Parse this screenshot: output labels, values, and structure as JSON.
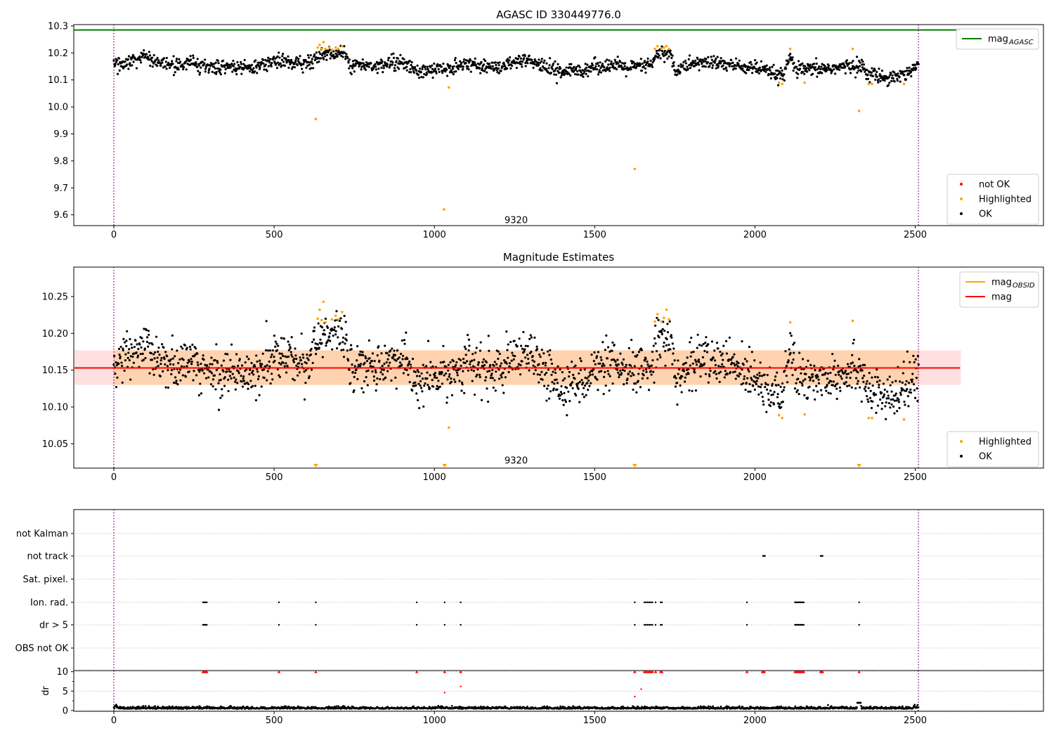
{
  "colors": {
    "ok": "#000000",
    "highlighted": "#ffa500",
    "not_ok": "#ff0000",
    "mag_agasc": "#008000",
    "mag": "#ff0000",
    "mag_obsid": "#ffa500",
    "obsid_vline": "#800080",
    "band": "#ff9999"
  },
  "chart_data": [
    {
      "type": "scatter",
      "title": "AGASC ID 330449776.0",
      "xlim": [
        -125,
        2900
      ],
      "ylim": [
        9.56,
        10.305
      ],
      "xticks": [
        0,
        500,
        1000,
        1500,
        2000,
        2500
      ],
      "yticks": [
        9.6,
        9.7,
        9.8,
        9.9,
        10.0,
        10.1,
        10.2,
        10.3
      ],
      "ytick_labels": [
        "9.6",
        "9.7",
        "9.8",
        "9.9",
        "10.0",
        "10.1",
        "10.2",
        "10.3"
      ],
      "obsid_lines": [
        0,
        2510
      ],
      "obsid_label": {
        "text": "9320",
        "x": 1255,
        "y": 9.58
      },
      "mag_agasc": 10.285,
      "legend_top": [
        {
          "label": "mag",
          "sub": "AGASC",
          "kind": "line",
          "color": "#008000"
        }
      ],
      "legend_bottom": [
        {
          "label": "not OK",
          "kind": "dot",
          "color": "#ff0000"
        },
        {
          "label": "Highlighted",
          "kind": "dot",
          "color": "#ffa500"
        },
        {
          "label": "OK",
          "kind": "dot",
          "color": "#000000"
        }
      ],
      "highlighted_points": [
        [
          630,
          9.955
        ],
        [
          636,
          10.22
        ],
        [
          642,
          10.23
        ],
        [
          648,
          10.215
        ],
        [
          654,
          10.24
        ],
        [
          660,
          10.215
        ],
        [
          672,
          10.22
        ],
        [
          680,
          10.21
        ],
        [
          692,
          10.22
        ],
        [
          700,
          10.215
        ],
        [
          712,
          10.225
        ],
        [
          1030,
          9.62
        ],
        [
          1045,
          10.072
        ],
        [
          1625,
          9.77
        ],
        [
          1688,
          10.215
        ],
        [
          1696,
          10.225
        ],
        [
          1708,
          10.215
        ],
        [
          1716,
          10.22
        ],
        [
          1724,
          10.225
        ],
        [
          1732,
          10.215
        ],
        [
          2075,
          10.09
        ],
        [
          2085,
          10.085
        ],
        [
          2110,
          10.215
        ],
        [
          2155,
          10.09
        ],
        [
          2305,
          10.215
        ],
        [
          2325,
          9.985
        ],
        [
          2355,
          10.085
        ],
        [
          2365,
          10.085
        ],
        [
          2465,
          10.085
        ]
      ],
      "ok_profile": [
        [
          0,
          10.155
        ],
        [
          50,
          10.17
        ],
        [
          100,
          10.18
        ],
        [
          150,
          10.16
        ],
        [
          200,
          10.155
        ],
        [
          250,
          10.16
        ],
        [
          300,
          10.145
        ],
        [
          350,
          10.15
        ],
        [
          400,
          10.145
        ],
        [
          450,
          10.15
        ],
        [
          500,
          10.17
        ],
        [
          550,
          10.165
        ],
        [
          600,
          10.16
        ],
        [
          650,
          10.195
        ],
        [
          720,
          10.2
        ],
        [
          740,
          10.155
        ],
        [
          800,
          10.155
        ],
        [
          850,
          10.16
        ],
        [
          900,
          10.165
        ],
        [
          950,
          10.13
        ],
        [
          1000,
          10.14
        ],
        [
          1050,
          10.145
        ],
        [
          1100,
          10.16
        ],
        [
          1150,
          10.15
        ],
        [
          1200,
          10.15
        ],
        [
          1250,
          10.16
        ],
        [
          1300,
          10.17
        ],
        [
          1350,
          10.145
        ],
        [
          1400,
          10.13
        ],
        [
          1450,
          10.135
        ],
        [
          1500,
          10.15
        ],
        [
          1550,
          10.155
        ],
        [
          1600,
          10.145
        ],
        [
          1650,
          10.15
        ],
        [
          1680,
          10.16
        ],
        [
          1700,
          10.2
        ],
        [
          1740,
          10.195
        ],
        [
          1750,
          10.13
        ],
        [
          1800,
          10.16
        ],
        [
          1850,
          10.165
        ],
        [
          1900,
          10.16
        ],
        [
          1950,
          10.15
        ],
        [
          2000,
          10.145
        ],
        [
          2050,
          10.125
        ],
        [
          2090,
          10.115
        ],
        [
          2110,
          10.185
        ],
        [
          2130,
          10.135
        ],
        [
          2200,
          10.14
        ],
        [
          2250,
          10.145
        ],
        [
          2300,
          10.15
        ],
        [
          2330,
          10.155
        ],
        [
          2350,
          10.125
        ],
        [
          2400,
          10.11
        ],
        [
          2450,
          10.115
        ],
        [
          2480,
          10.13
        ],
        [
          2510,
          10.155
        ]
      ],
      "ok_spread": 0.013,
      "ok_count": 1700
    },
    {
      "type": "scatter",
      "title": "Magnitude Estimates",
      "xlim": [
        -125,
        2900
      ],
      "ylim": [
        10.017,
        10.29
      ],
      "xticks": [
        0,
        500,
        1000,
        1500,
        2000,
        2500
      ],
      "yticks": [
        10.05,
        10.1,
        10.15,
        10.2,
        10.25
      ],
      "ytick_labels": [
        "10.05",
        "10.10",
        "10.15",
        "10.20",
        "10.25"
      ],
      "obsid_lines": [
        0,
        2510
      ],
      "obsid_label": {
        "text": "9320",
        "x": 1255,
        "y": 10.027
      },
      "mag": 10.153,
      "mag_band": [
        10.13,
        10.177
      ],
      "mag_band_x": [
        -125,
        2640
      ],
      "mag_obsid": 10.153,
      "mag_obsid_band": [
        10.13,
        10.177
      ],
      "mag_obsid_x": [
        0,
        2510
      ],
      "legend_top": [
        {
          "label": "mag",
          "sub": "OBSID",
          "kind": "line",
          "color": "#ffa500"
        },
        {
          "label": "mag",
          "kind": "line",
          "color": "#ff0000"
        }
      ],
      "legend_bottom": [
        {
          "label": "Highlighted",
          "kind": "dot",
          "color": "#ffa500"
        },
        {
          "label": "OK",
          "kind": "dot",
          "color": "#000000"
        }
      ],
      "offscale_markers": [
        630,
        1032,
        1625,
        2325
      ],
      "highlighted_points": [
        [
          636,
          10.22
        ],
        [
          642,
          10.232
        ],
        [
          648,
          10.218
        ],
        [
          654,
          10.243
        ],
        [
          660,
          10.215
        ],
        [
          680,
          10.219
        ],
        [
          692,
          10.224
        ],
        [
          700,
          10.219
        ],
        [
          712,
          10.229
        ],
        [
          1045,
          10.072
        ],
        [
          1688,
          10.216
        ],
        [
          1696,
          10.226
        ],
        [
          1708,
          10.216
        ],
        [
          1716,
          10.221
        ],
        [
          1724,
          10.232
        ],
        [
          1732,
          10.219
        ],
        [
          2075,
          10.089
        ],
        [
          2085,
          10.085
        ],
        [
          2110,
          10.215
        ],
        [
          2155,
          10.09
        ],
        [
          2305,
          10.217
        ],
        [
          2355,
          10.085
        ],
        [
          2365,
          10.085
        ],
        [
          2465,
          10.083
        ]
      ],
      "ok_profile": [
        [
          0,
          10.155
        ],
        [
          50,
          10.17
        ],
        [
          100,
          10.18
        ],
        [
          150,
          10.16
        ],
        [
          200,
          10.155
        ],
        [
          250,
          10.16
        ],
        [
          300,
          10.145
        ],
        [
          350,
          10.15
        ],
        [
          400,
          10.145
        ],
        [
          450,
          10.15
        ],
        [
          500,
          10.17
        ],
        [
          550,
          10.165
        ],
        [
          600,
          10.16
        ],
        [
          650,
          10.195
        ],
        [
          720,
          10.2
        ],
        [
          740,
          10.155
        ],
        [
          800,
          10.155
        ],
        [
          850,
          10.16
        ],
        [
          900,
          10.165
        ],
        [
          950,
          10.13
        ],
        [
          1000,
          10.14
        ],
        [
          1050,
          10.145
        ],
        [
          1100,
          10.16
        ],
        [
          1150,
          10.15
        ],
        [
          1200,
          10.15
        ],
        [
          1250,
          10.16
        ],
        [
          1300,
          10.17
        ],
        [
          1350,
          10.145
        ],
        [
          1400,
          10.13
        ],
        [
          1450,
          10.135
        ],
        [
          1500,
          10.15
        ],
        [
          1550,
          10.155
        ],
        [
          1600,
          10.145
        ],
        [
          1650,
          10.15
        ],
        [
          1680,
          10.16
        ],
        [
          1700,
          10.2
        ],
        [
          1740,
          10.195
        ],
        [
          1750,
          10.13
        ],
        [
          1800,
          10.16
        ],
        [
          1850,
          10.165
        ],
        [
          1900,
          10.16
        ],
        [
          1950,
          10.15
        ],
        [
          2000,
          10.145
        ],
        [
          2050,
          10.125
        ],
        [
          2090,
          10.115
        ],
        [
          2110,
          10.185
        ],
        [
          2130,
          10.135
        ],
        [
          2200,
          10.14
        ],
        [
          2250,
          10.145
        ],
        [
          2300,
          10.15
        ],
        [
          2330,
          10.155
        ],
        [
          2350,
          10.125
        ],
        [
          2400,
          10.11
        ],
        [
          2450,
          10.115
        ],
        [
          2480,
          10.13
        ],
        [
          2510,
          10.155
        ]
      ],
      "ok_spread": 0.016,
      "ok_count": 1700
    },
    {
      "type": "scatter",
      "title": "",
      "xlim": [
        -125,
        2900
      ],
      "categories": [
        "not Kalman",
        "not track",
        "Sat. pixel.",
        "Ion. rad.",
        "dr > 5",
        "OBS not OK"
      ],
      "category_points": {
        "not Kalman": [],
        "not track": [
          2025,
          2027,
          2029,
          2031,
          2205,
          2207,
          2209,
          2211
        ],
        "Sat. pixel.": [],
        "Ion. rad.": [
          278,
          281,
          284,
          287,
          290,
          515,
          630,
          945,
          1032,
          1082,
          1625,
          1655,
          1660,
          1665,
          1670,
          1675,
          1680,
          1690,
          1706,
          1710,
          1975,
          2125,
          2128,
          2131,
          2134,
          2137,
          2140,
          2143,
          2146,
          2149,
          2152,
          2325
        ],
        "dr > 5": [
          278,
          281,
          284,
          287,
          290,
          515,
          630,
          945,
          1032,
          1082,
          1625,
          1655,
          1660,
          1665,
          1670,
          1675,
          1680,
          1690,
          1706,
          1710,
          1975,
          2125,
          2128,
          2131,
          2134,
          2137,
          2140,
          2143,
          2146,
          2149,
          2152,
          2325
        ],
        "OBS not OK": []
      },
      "obsid_lines": [
        0,
        2510
      ],
      "xticks": [
        0,
        500,
        1000,
        1500,
        2000,
        2500
      ]
    },
    {
      "type": "scatter",
      "title": "",
      "ylabel": "dr",
      "xlim": [
        -125,
        2900
      ],
      "ylim": [
        -0.2,
        10.3
      ],
      "yticks": [
        0,
        5,
        10
      ],
      "ytick_labels": [
        "0",
        "5",
        "10"
      ],
      "xticks": [
        0,
        500,
        1000,
        1500,
        2000,
        2500
      ],
      "xtick_labels": [
        "0",
        "500",
        "1000",
        "1500",
        "2000",
        "2500"
      ],
      "obsid_lines": [
        0,
        2510
      ],
      "capped_triangles": [
        278,
        281,
        284,
        287,
        290,
        515,
        630,
        945,
        1032,
        1082,
        1625,
        1655,
        1660,
        1665,
        1670,
        1675,
        1680,
        1690,
        1706,
        1710,
        1975,
        2023,
        2026,
        2029,
        2125,
        2128,
        2131,
        2134,
        2137,
        2140,
        2143,
        2146,
        2149,
        2152,
        2205,
        2208,
        2211,
        2325
      ],
      "red_points": [
        [
          1032,
          4.6
        ],
        [
          1082,
          6.2
        ],
        [
          1625,
          3.6
        ],
        [
          1645,
          5.5
        ]
      ],
      "ok_baseline": 0.45,
      "ok_count": 1700
    }
  ]
}
